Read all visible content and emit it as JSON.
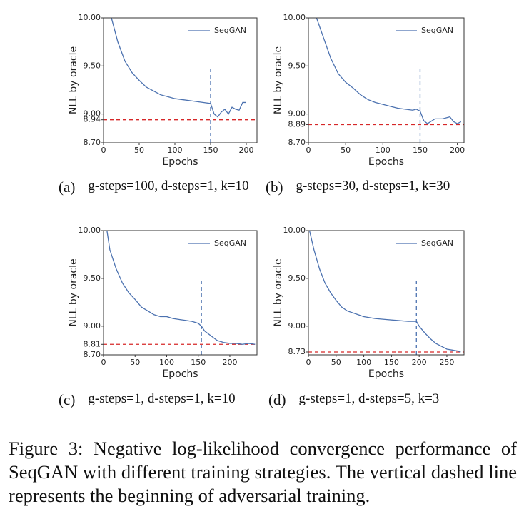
{
  "chart_data": [
    {
      "type": "line",
      "label": "(a)",
      "caption": "g-steps=100, d-steps=1, k=10",
      "xlabel": "Epochs",
      "ylabel": "NLL by oracle",
      "x": [
        10,
        20,
        30,
        40,
        50,
        60,
        70,
        80,
        90,
        100,
        110,
        120,
        130,
        140,
        150,
        155,
        160,
        165,
        170,
        175,
        180,
        185,
        190,
        195,
        200
      ],
      "series": [
        {
          "name": "SeqGAN",
          "color": "#4c72b0",
          "values": [
            10.03,
            9.75,
            9.55,
            9.43,
            9.35,
            9.28,
            9.24,
            9.2,
            9.18,
            9.16,
            9.15,
            9.14,
            9.13,
            9.12,
            9.11,
            9.0,
            8.97,
            9.02,
            9.05,
            9.0,
            9.07,
            9.05,
            9.04,
            9.12,
            9.12
          ]
        }
      ],
      "xlim": [
        0,
        215
      ],
      "xticks": [
        0,
        50,
        100,
        150,
        200
      ],
      "ylim": [
        8.7,
        10.0
      ],
      "yticks": [
        {
          "value": 8.7,
          "label": "8.70"
        },
        {
          "value": 8.94,
          "label": "8.94"
        },
        {
          "value": 9.0,
          "label": "9.00"
        },
        {
          "value": 9.5,
          "label": "9.50"
        },
        {
          "value": 10.0,
          "label": "10.00"
        }
      ],
      "vline": {
        "x": 150,
        "y": [
          8.7,
          9.5
        ]
      },
      "hline": 8.94,
      "legend": "upper right"
    },
    {
      "type": "line",
      "label": "(b)",
      "caption": "g-steps=30, d-steps=1, k=30",
      "xlabel": "Epochs",
      "ylabel": "NLL by oracle",
      "x": [
        10,
        20,
        30,
        40,
        50,
        60,
        70,
        80,
        90,
        100,
        110,
        120,
        130,
        140,
        145,
        150,
        155,
        160,
        170,
        180,
        190,
        195,
        200,
        205
      ],
      "series": [
        {
          "name": "SeqGAN",
          "color": "#4c72b0",
          "values": [
            10.02,
            9.8,
            9.58,
            9.42,
            9.33,
            9.27,
            9.2,
            9.15,
            9.12,
            9.1,
            9.08,
            9.06,
            9.05,
            9.04,
            9.05,
            9.03,
            8.93,
            8.9,
            8.95,
            8.95,
            8.97,
            8.92,
            8.9,
            8.92
          ]
        }
      ],
      "xlim": [
        0,
        209
      ],
      "xticks": [
        0,
        50,
        100,
        150,
        200
      ],
      "ylim": [
        8.7,
        10.0
      ],
      "yticks": [
        {
          "value": 8.7,
          "label": "8.70"
        },
        {
          "value": 8.89,
          "label": "8.89"
        },
        {
          "value": 9.0,
          "label": "9.00"
        },
        {
          "value": 9.5,
          "label": "9.50"
        },
        {
          "value": 10.0,
          "label": "10.00"
        }
      ],
      "vline": {
        "x": 150,
        "y": [
          8.7,
          9.5
        ]
      },
      "hline": 8.89,
      "legend": "upper right"
    },
    {
      "type": "line",
      "label": "(c)",
      "caption": "g-steps=1, d-steps=1, k=10",
      "xlabel": "Epochs",
      "ylabel": "NLL by oracle",
      "x": [
        5,
        10,
        20,
        30,
        40,
        50,
        60,
        70,
        80,
        90,
        100,
        110,
        120,
        130,
        140,
        150,
        155,
        160,
        170,
        180,
        190,
        200,
        210,
        220,
        230,
        240
      ],
      "series": [
        {
          "name": "SeqGAN",
          "color": "#4c72b0",
          "values": [
            10.02,
            9.8,
            9.6,
            9.45,
            9.35,
            9.28,
            9.2,
            9.16,
            9.12,
            9.1,
            9.1,
            9.08,
            9.07,
            9.06,
            9.05,
            9.03,
            9.0,
            8.95,
            8.9,
            8.85,
            8.83,
            8.82,
            8.82,
            8.81,
            8.82,
            8.81
          ]
        }
      ],
      "xlim": [
        0,
        243
      ],
      "xticks": [
        0,
        50,
        100,
        150,
        200
      ],
      "ylim": [
        8.7,
        10.0
      ],
      "yticks": [
        {
          "value": 8.7,
          "label": "8.70"
        },
        {
          "value": 8.81,
          "label": "8.81"
        },
        {
          "value": 9.0,
          "label": "9.00"
        },
        {
          "value": 9.5,
          "label": "9.50"
        },
        {
          "value": 10.0,
          "label": "10.00"
        }
      ],
      "vline": {
        "x": 155,
        "y": [
          8.7,
          9.5
        ]
      },
      "hline": 8.81,
      "legend": "upper right"
    },
    {
      "type": "line",
      "label": "(d)",
      "caption": "g-steps=1, d-steps=5, k=3",
      "xlabel": "Epochs",
      "ylabel": "NLL by oracle",
      "x": [
        0,
        10,
        20,
        30,
        40,
        50,
        60,
        70,
        80,
        100,
        120,
        140,
        160,
        180,
        190,
        195,
        200,
        210,
        220,
        230,
        240,
        250,
        260,
        270,
        275
      ],
      "series": [
        {
          "name": "SeqGAN",
          "color": "#4c72b0",
          "values": [
            10.05,
            9.8,
            9.6,
            9.45,
            9.35,
            9.27,
            9.2,
            9.16,
            9.14,
            9.1,
            9.08,
            9.07,
            9.06,
            9.05,
            9.05,
            9.05,
            9.0,
            8.93,
            8.87,
            8.82,
            8.79,
            8.76,
            8.75,
            8.74,
            8.73
          ]
        }
      ],
      "xlim": [
        0,
        281
      ],
      "xticks": [
        0,
        50,
        100,
        150,
        200,
        250
      ],
      "ylim": [
        8.7,
        10.0
      ],
      "yticks": [
        {
          "value": 8.73,
          "label": "8.73"
        },
        {
          "value": 9.0,
          "label": "9.00"
        },
        {
          "value": 9.5,
          "label": "9.50"
        },
        {
          "value": 10.0,
          "label": "10.00"
        }
      ],
      "vline": {
        "x": 195,
        "y": [
          8.7,
          9.5
        ]
      },
      "hline": 8.73,
      "legend": "upper right"
    }
  ],
  "figure_caption": "Figure 3: Negative log-likelihood convergence performance of SeqGAN with different training strategies. The vertical dashed line represents the beginning of adversarial training."
}
